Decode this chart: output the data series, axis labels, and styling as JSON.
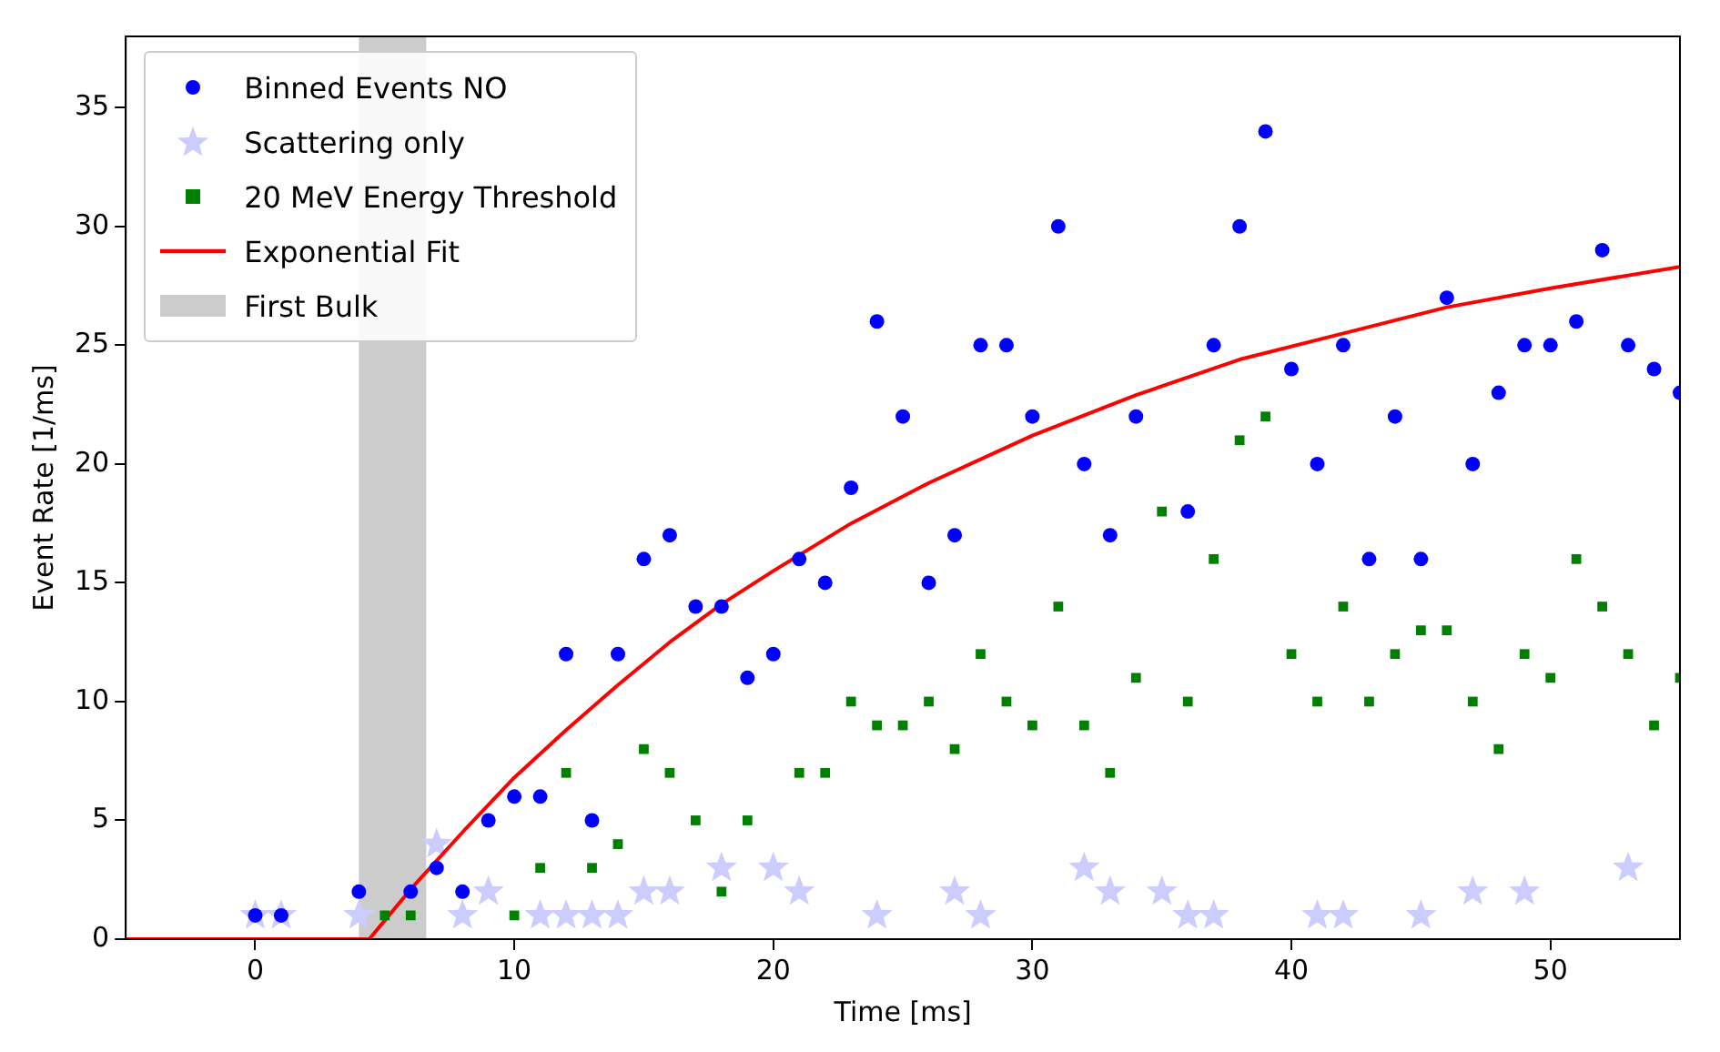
{
  "chart_data": {
    "type": "scatter",
    "xlabel": "Time [ms]",
    "ylabel": "Event Rate [1/ms]",
    "xlim": [
      -5,
      55
    ],
    "ylim": [
      0,
      38
    ],
    "xticks": [
      0,
      10,
      20,
      30,
      40,
      50
    ],
    "yticks": [
      0,
      5,
      10,
      15,
      20,
      25,
      30,
      35
    ],
    "grid": false,
    "legend": "top left",
    "bands": [
      {
        "axis": "x",
        "from": 4,
        "to": 6.6,
        "label": "First Bulk",
        "color": "#cccccc"
      }
    ],
    "series": [
      {
        "name": "Binned Events NO",
        "type": "scatter",
        "marker": "circle",
        "color": "#0000ff",
        "x": [
          0,
          1,
          4,
          6,
          7,
          8,
          9,
          10,
          11,
          12,
          13,
          14,
          15,
          16,
          17,
          18,
          19,
          20,
          21,
          22,
          23,
          24,
          25,
          26,
          27,
          28,
          29,
          30,
          31,
          32,
          33,
          34,
          36,
          37,
          38,
          39,
          40,
          41,
          42,
          43,
          44,
          45,
          46,
          47,
          48,
          49,
          50,
          51,
          52,
          53,
          54,
          55
        ],
        "values": [
          1,
          1,
          2,
          2,
          3,
          2,
          5,
          6,
          6,
          12,
          5,
          12,
          16,
          17,
          14,
          14,
          11,
          12,
          16,
          15,
          19,
          26,
          22,
          15,
          17,
          25,
          25,
          22,
          30,
          20,
          17,
          22,
          18,
          25,
          30,
          34,
          24,
          20,
          25,
          16,
          22,
          16,
          27,
          20,
          23,
          25,
          25,
          26,
          29,
          25,
          24,
          23
        ]
      },
      {
        "name": "Scattering only",
        "type": "scatter",
        "marker": "star",
        "color": "#ccccff",
        "x": [
          0,
          1,
          4,
          7,
          8,
          9,
          11,
          12,
          13,
          14,
          15,
          16,
          18,
          20,
          21,
          24,
          27,
          28,
          32,
          33,
          35,
          36,
          37,
          41,
          42,
          45,
          47,
          49,
          53
        ],
        "values": [
          1,
          1,
          1,
          4,
          1,
          2,
          1,
          1,
          1,
          1,
          2,
          2,
          3,
          3,
          2,
          1,
          2,
          1,
          3,
          2,
          2,
          1,
          1,
          1,
          1,
          1,
          2,
          2,
          3
        ]
      },
      {
        "name": "20 MeV Energy Threshold",
        "type": "scatter",
        "marker": "square",
        "color": "#008000",
        "x": [
          5,
          6,
          10,
          11,
          12,
          13,
          14,
          15,
          16,
          17,
          18,
          19,
          21,
          22,
          23,
          24,
          25,
          26,
          27,
          28,
          29,
          30,
          31,
          32,
          33,
          34,
          35,
          36,
          37,
          38,
          39,
          40,
          41,
          42,
          43,
          44,
          45,
          46,
          47,
          48,
          49,
          50,
          51,
          52,
          53,
          54,
          55
        ],
        "values": [
          1,
          1,
          1,
          3,
          7,
          3,
          4,
          8,
          7,
          5,
          2,
          5,
          7,
          7,
          10,
          9,
          9,
          10,
          8,
          12,
          10,
          9,
          14,
          9,
          7,
          11,
          18,
          10,
          16,
          21,
          22,
          12,
          10,
          14,
          10,
          12,
          13,
          13,
          10,
          8,
          12,
          11,
          16,
          14,
          12,
          9,
          11
        ]
      },
      {
        "name": "Exponential Fit",
        "type": "line",
        "marker": "none",
        "line_style": "solid",
        "color": "#ff0000",
        "x": [
          -5,
          4.4,
          6,
          8,
          10,
          12,
          14,
          16,
          18,
          20,
          23,
          26,
          30,
          34,
          38,
          42,
          46,
          50,
          55
        ],
        "values": [
          0,
          0,
          2.1,
          4.5,
          6.8,
          8.8,
          10.7,
          12.5,
          14.1,
          15.5,
          17.5,
          19.2,
          21.2,
          22.9,
          24.4,
          25.5,
          26.6,
          27.4,
          28.3
        ]
      }
    ]
  }
}
